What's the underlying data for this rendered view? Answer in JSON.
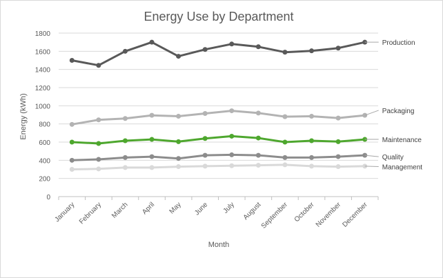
{
  "chart_data": {
    "type": "line",
    "title": "Energy Use by Department",
    "xlabel": "Month",
    "ylabel": "Energy (kWh)",
    "ylim": [
      0,
      1800
    ],
    "yticks": [
      0,
      200,
      400,
      600,
      800,
      1000,
      1200,
      1400,
      1600,
      1800
    ],
    "grid": "horizontal",
    "legend": "inline labels at right end of each series",
    "categories": [
      "January",
      "February",
      "March",
      "April",
      "May",
      "June",
      "July",
      "August",
      "September",
      "October",
      "November",
      "December"
    ],
    "series": [
      {
        "name": "Production",
        "color": "#595959",
        "values": [
          1500,
          1445,
          1600,
          1700,
          1545,
          1620,
          1680,
          1650,
          1590,
          1605,
          1635,
          1700
        ]
      },
      {
        "name": "Packaging",
        "color": "#b3b3b3",
        "values": [
          795,
          845,
          860,
          895,
          885,
          915,
          945,
          920,
          880,
          885,
          865,
          895
        ]
      },
      {
        "name": "Maintenance",
        "color": "#4ea72e",
        "values": [
          600,
          585,
          615,
          630,
          605,
          640,
          665,
          645,
          600,
          615,
          605,
          630
        ]
      },
      {
        "name": "Quality",
        "color": "#8c8c8c",
        "values": [
          400,
          410,
          430,
          440,
          420,
          455,
          460,
          455,
          430,
          430,
          440,
          455
        ]
      },
      {
        "name": "Management",
        "color": "#d9d9d9",
        "values": [
          300,
          305,
          320,
          320,
          330,
          335,
          340,
          345,
          350,
          335,
          330,
          335
        ]
      }
    ]
  }
}
